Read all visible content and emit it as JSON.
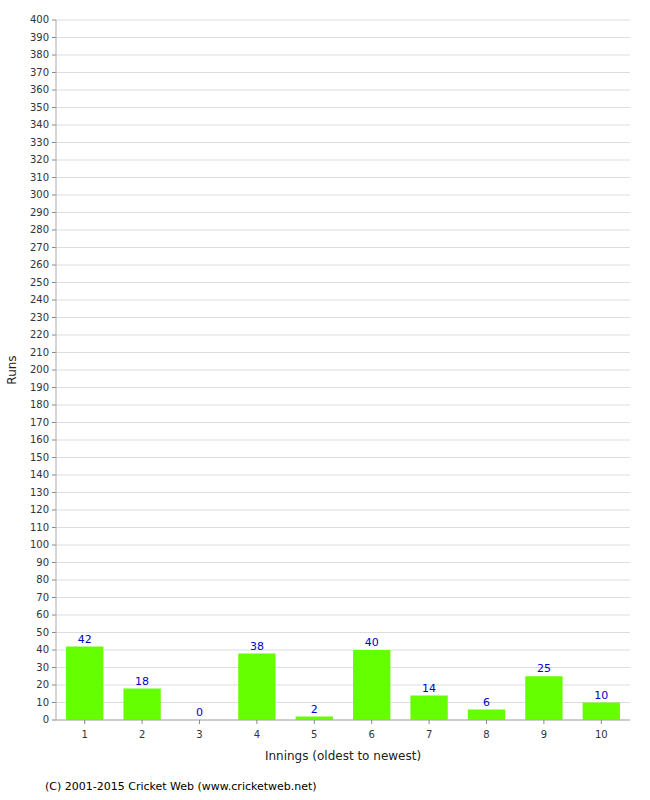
{
  "chart_data": {
    "type": "bar",
    "categories": [
      "1",
      "2",
      "3",
      "4",
      "5",
      "6",
      "7",
      "8",
      "9",
      "10"
    ],
    "values": [
      42,
      18,
      0,
      38,
      2,
      40,
      14,
      6,
      25,
      10
    ],
    "color": "#66ff00",
    "xlabel": "Innings (oldest to newest)",
    "ylabel": "Runs",
    "ylim": [
      0,
      400
    ],
    "yticks": [
      0,
      10,
      20,
      30,
      40,
      50,
      60,
      70,
      80,
      90,
      100,
      110,
      120,
      130,
      140,
      150,
      160,
      170,
      180,
      190,
      200,
      210,
      220,
      230,
      240,
      250,
      260,
      270,
      280,
      290,
      300,
      310,
      320,
      330,
      340,
      350,
      360,
      370,
      380,
      390,
      400
    ],
    "grid": true,
    "data_labels": true,
    "annotations": [
      "(C) 2001-2015 Cricket Web (www.cricketweb.net)"
    ]
  }
}
